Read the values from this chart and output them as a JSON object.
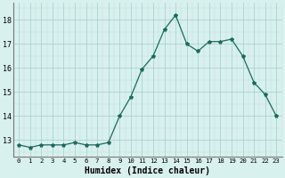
{
  "x": [
    0,
    1,
    2,
    3,
    4,
    5,
    6,
    7,
    8,
    9,
    10,
    11,
    12,
    13,
    14,
    15,
    16,
    17,
    18,
    19,
    20,
    21,
    22,
    23
  ],
  "y": [
    12.8,
    12.7,
    12.8,
    12.8,
    12.8,
    12.9,
    12.8,
    12.8,
    12.9,
    14.0,
    14.8,
    15.95,
    16.5,
    17.6,
    18.2,
    17.0,
    16.7,
    17.1,
    17.1,
    17.2,
    16.5,
    15.4,
    14.9,
    14.0
  ],
  "line_color": "#1a6b5a",
  "marker": "*",
  "marker_size": 3,
  "bg_color": "#d8f0ee",
  "xlabel": "Humidex (Indice chaleur)",
  "xlabel_fontsize": 7,
  "ylabel_ticks": [
    13,
    14,
    15,
    16,
    17,
    18
  ],
  "xlim": [
    -0.5,
    23.5
  ],
  "ylim": [
    12.3,
    18.7
  ]
}
